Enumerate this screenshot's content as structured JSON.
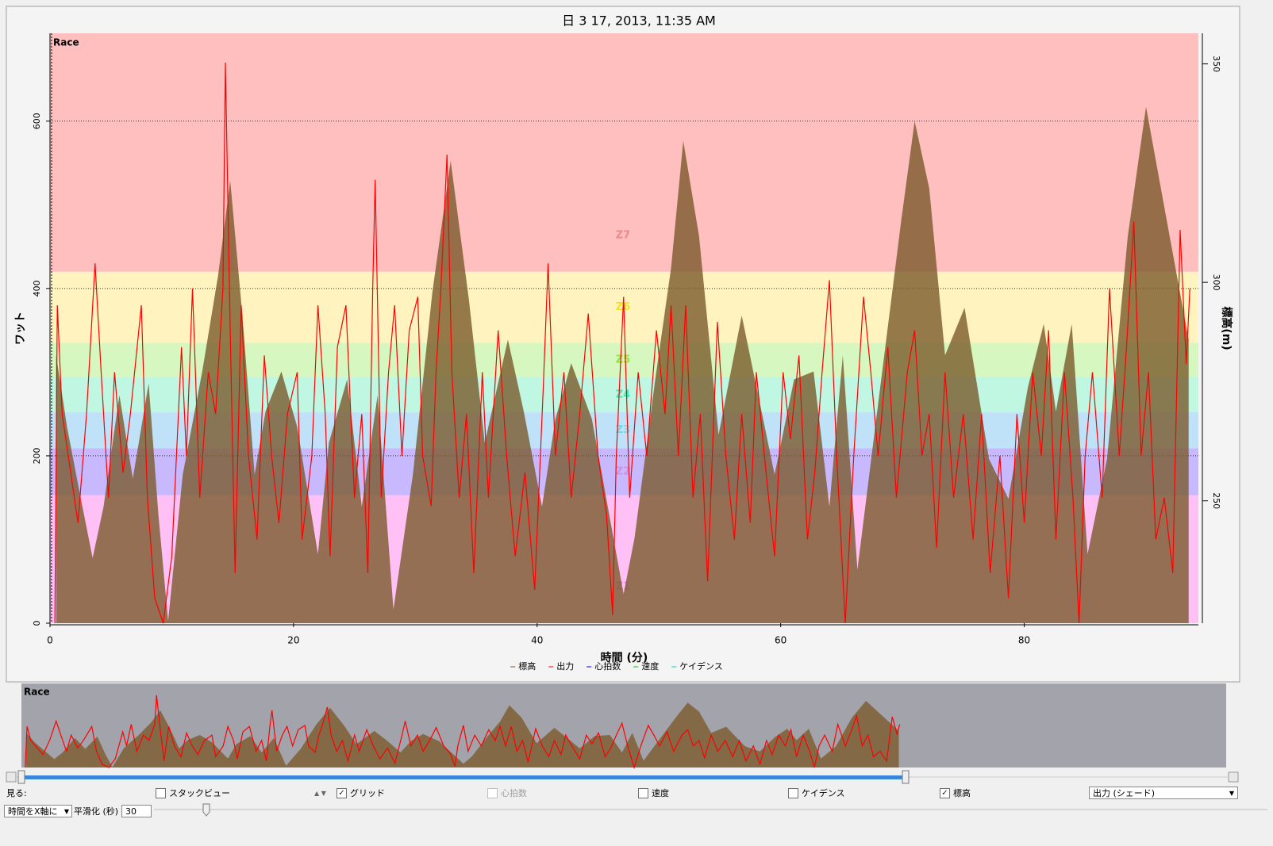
{
  "chart_data": {
    "type": "line",
    "title": "日 3 17, 2013, 11:35 AM",
    "plot_label": "Race",
    "overview_label": "Race",
    "xlabel": "時間 (分)",
    "ylabel": "ワット",
    "y2label": "標高(m)",
    "xlim": [
      0,
      94.3
    ],
    "xticks": [
      0,
      20,
      40,
      60,
      80
    ],
    "ylim": [
      0,
      705
    ],
    "yticks": [
      0,
      200,
      400,
      600
    ],
    "y2lim": [
      222,
      357
    ],
    "y2ticks": [
      250,
      300,
      350
    ],
    "grid": true,
    "zones": [
      {
        "name": "Z1",
        "from": 0,
        "to": 153,
        "color": "#ffc0f6"
      },
      {
        "name": "Z2",
        "from": 153,
        "to": 209,
        "color": "#c8b9ff"
      },
      {
        "name": "Z3",
        "from": 209,
        "to": 252,
        "color": "#bfe2f8"
      },
      {
        "name": "Z4",
        "from": 252,
        "to": 294,
        "color": "#bff7e2"
      },
      {
        "name": "Z5",
        "from": 294,
        "to": 335,
        "color": "#d6f7bf"
      },
      {
        "name": "Z6",
        "from": 335,
        "to": 420,
        "color": "#fff4bf"
      },
      {
        "name": "Z7",
        "from": 420,
        "to": 705,
        "color": "#ffbfbf"
      }
    ],
    "series": [
      {
        "name": "標高",
        "color": "#7a5a2c",
        "axis": "y2",
        "x": [
          0.5,
          1.4,
          2.4,
          3.5,
          4.4,
          5.7,
          6.8,
          8.1,
          8.9,
          9.7,
          10.9,
          12.5,
          13.8,
          14.8,
          15.8,
          16.8,
          17.7,
          19.0,
          20.3,
          22.0,
          22.9,
          24.4,
          25.6,
          26.9,
          28.2,
          29.8,
          31.4,
          32.9,
          34.4,
          35.7,
          37.6,
          38.9,
          40.4,
          41.5,
          42.8,
          44.5,
          47.1,
          48.0,
          49.7,
          51.0,
          52.0,
          53.3,
          54.9,
          56.8,
          59.5,
          61.1,
          62.7,
          64.0,
          65.1,
          66.3,
          67.6,
          69.9,
          71.0,
          72.2,
          73.5,
          75.1,
          77.1,
          78.7,
          80.3,
          81.6,
          82.6,
          83.9,
          85.2,
          86.8,
          88.5,
          90.0,
          91.7,
          93.5
        ],
        "values": [
          283.3,
          266.9,
          252.4,
          236.9,
          248.7,
          274.2,
          255.1,
          276.9,
          246.9,
          222.5,
          256.0,
          279.6,
          301.5,
          323.3,
          292.4,
          256.0,
          270.5,
          279.6,
          266.9,
          237.8,
          263.3,
          277.8,
          248.7,
          274.2,
          225.1,
          256.0,
          297.8,
          327.8,
          296.0,
          263.3,
          286.9,
          270.5,
          248.7,
          268.7,
          281.5,
          268.7,
          228.7,
          241.5,
          277.8,
          303.3,
          332.4,
          310.5,
          265.1,
          292.4,
          256.0,
          277.8,
          279.6,
          248.7,
          283.3,
          234.2,
          263.3,
          314.2,
          336.9,
          321.5,
          283.3,
          294.2,
          259.6,
          250.5,
          276.0,
          290.5,
          270.5,
          290.5,
          237.8,
          259.6,
          310.5,
          340.2,
          314.2,
          286.9
        ]
      },
      {
        "name": "出力",
        "color": "#ff0000",
        "x": [
          0.4,
          0.6,
          1.0,
          1.5,
          2.3,
          3.0,
          3.7,
          4.2,
          4.8,
          5.3,
          6.0,
          6.6,
          7.5,
          8.0,
          8.6,
          9.3,
          10.0,
          10.8,
          11.2,
          11.7,
          12.3,
          13.0,
          13.6,
          14.2,
          14.4,
          14.8,
          15.2,
          15.7,
          16.3,
          17.0,
          17.6,
          18.2,
          18.8,
          19.5,
          20.3,
          20.7,
          21.5,
          22.0,
          22.6,
          23.0,
          23.6,
          24.3,
          25.0,
          25.6,
          26.1,
          26.5,
          26.7,
          27.2,
          27.8,
          28.3,
          28.9,
          29.5,
          30.2,
          30.6,
          31.3,
          31.7,
          32.1,
          32.6,
          33.0,
          33.6,
          34.2,
          34.8,
          35.5,
          36.0,
          36.8,
          37.5,
          38.2,
          39.0,
          39.8,
          40.5,
          40.9,
          41.5,
          42.2,
          42.8,
          43.5,
          44.2,
          45.0,
          45.7,
          46.2,
          46.5,
          47.1,
          47.6,
          48.3,
          49.0,
          49.8,
          50.5,
          51.0,
          51.6,
          52.2,
          52.8,
          53.4,
          54.0,
          54.8,
          55.5,
          56.2,
          56.8,
          57.5,
          58.0,
          58.8,
          59.5,
          60.2,
          60.8,
          61.5,
          62.2,
          62.8,
          63.4,
          64.0,
          64.6,
          65.3,
          66.0,
          66.8,
          67.4,
          68.0,
          68.8,
          69.5,
          70.4,
          71.0,
          71.6,
          72.2,
          72.8,
          73.5,
          74.2,
          75.0,
          75.8,
          76.5,
          77.2,
          78.0,
          78.7,
          79.4,
          80.0,
          80.7,
          81.4,
          82.0,
          82.6,
          83.3,
          84.0,
          84.5,
          85.0,
          85.6,
          86.4,
          87.0,
          87.8,
          88.4,
          89.0,
          89.6,
          90.2,
          90.8,
          91.5,
          92.2,
          92.8,
          93.3,
          93.6
        ],
        "values": [
          0,
          380,
          250,
          200,
          120,
          250,
          430,
          300,
          150,
          300,
          180,
          250,
          380,
          150,
          30,
          0,
          80,
          330,
          200,
          400,
          150,
          300,
          250,
          400,
          670,
          350,
          60,
          380,
          200,
          100,
          320,
          200,
          120,
          250,
          300,
          100,
          200,
          380,
          250,
          80,
          330,
          380,
          150,
          250,
          60,
          400,
          530,
          150,
          300,
          380,
          200,
          350,
          390,
          200,
          140,
          300,
          400,
          560,
          300,
          150,
          250,
          60,
          300,
          150,
          350,
          200,
          80,
          180,
          40,
          280,
          430,
          200,
          300,
          150,
          250,
          370,
          200,
          130,
          10,
          200,
          390,
          150,
          300,
          200,
          350,
          250,
          380,
          200,
          380,
          150,
          250,
          50,
          360,
          200,
          100,
          250,
          120,
          300,
          180,
          80,
          300,
          220,
          320,
          100,
          180,
          300,
          410,
          200,
          0,
          200,
          390,
          300,
          200,
          330,
          150,
          300,
          350,
          200,
          250,
          90,
          300,
          150,
          250,
          100,
          250,
          60,
          200,
          30,
          250,
          120,
          300,
          200,
          350,
          100,
          300,
          150,
          0,
          200,
          300,
          150,
          400,
          200,
          330,
          480,
          200,
          300,
          100,
          150,
          60,
          470,
          310,
          400
        ]
      },
      {
        "name": "心拍数",
        "color": "#0000ff"
      },
      {
        "name": "速度",
        "color": "#00cc00"
      },
      {
        "name": "ケイデンス",
        "color": "#00cccc"
      }
    ]
  },
  "controls": {
    "view_label": "見る:",
    "checkboxes": [
      {
        "label": "スタックビュー",
        "checked": false,
        "enabled": true
      },
      {
        "label": "グリッド",
        "checked": true,
        "enabled": true
      },
      {
        "label": "心拍数",
        "checked": false,
        "enabled": false
      },
      {
        "label": "速度",
        "checked": false,
        "enabled": true
      },
      {
        "label": "ケイデンス",
        "checked": false,
        "enabled": true
      },
      {
        "label": "標高",
        "checked": true,
        "enabled": true
      }
    ],
    "series_select": "出力 (シェード)",
    "xaxis_select": "時間をX軸に",
    "smoothing_label": "平滑化 (秒)",
    "smoothing_value": 30
  }
}
